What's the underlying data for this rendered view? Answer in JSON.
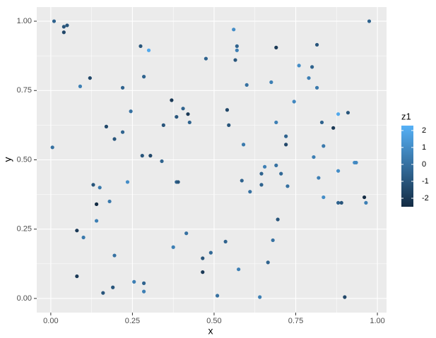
{
  "chart_data": {
    "type": "scatter",
    "xlabel": "x",
    "ylabel": "y",
    "x": [
      0.01,
      0.04,
      0.05,
      0.04,
      0.005,
      0.09,
      0.12,
      0.13,
      0.15,
      0.14,
      0.18,
      0.14,
      0.08,
      0.1,
      0.08,
      0.16,
      0.19,
      0.195,
      0.17,
      0.195,
      0.22,
      0.22,
      0.245,
      0.235,
      0.255,
      0.285,
      0.285,
      0.275,
      0.3,
      0.285,
      0.28,
      0.305,
      0.34,
      0.345,
      0.37,
      0.385,
      0.405,
      0.42,
      0.425,
      0.385,
      0.39,
      0.375,
      0.415,
      0.475,
      0.465,
      0.465,
      0.49,
      0.51,
      0.535,
      0.54,
      0.545,
      0.56,
      0.57,
      0.57,
      0.565,
      0.6,
      0.59,
      0.585,
      0.61,
      0.575,
      0.645,
      0.655,
      0.645,
      0.665,
      0.68,
      0.64,
      0.675,
      0.69,
      0.69,
      0.69,
      0.705,
      0.695,
      0.72,
      0.72,
      0.725,
      0.745,
      0.76,
      0.79,
      0.8,
      0.805,
      0.815,
      0.815,
      0.82,
      0.83,
      0.835,
      0.835,
      0.865,
      0.88,
      0.88,
      0.88,
      0.89,
      0.91,
      0.93,
      0.935,
      0.96,
      0.965,
      0.975,
      0.9
    ],
    "y": [
      1.0,
      0.98,
      0.985,
      0.96,
      0.545,
      0.765,
      0.795,
      0.41,
      0.4,
      0.34,
      0.35,
      0.28,
      0.245,
      0.22,
      0.08,
      0.02,
      0.04,
      0.155,
      0.62,
      0.575,
      0.6,
      0.76,
      0.675,
      0.42,
      0.06,
      0.055,
      0.025,
      0.91,
      0.895,
      0.8,
      0.515,
      0.515,
      0.495,
      0.625,
      0.715,
      0.655,
      0.685,
      0.665,
      0.635,
      0.42,
      0.42,
      0.185,
      0.235,
      0.865,
      0.145,
      0.095,
      0.165,
      0.01,
      0.205,
      0.68,
      0.625,
      0.97,
      0.91,
      0.895,
      0.86,
      0.77,
      0.555,
      0.425,
      0.385,
      0.105,
      0.41,
      0.475,
      0.45,
      0.13,
      0.21,
      0.005,
      0.78,
      0.905,
      0.635,
      0.48,
      0.45,
      0.285,
      0.585,
      0.555,
      0.405,
      0.71,
      0.84,
      0.795,
      0.835,
      0.51,
      0.76,
      0.915,
      0.435,
      0.635,
      0.55,
      0.365,
      0.615,
      0.665,
      0.46,
      0.345,
      0.345,
      0.67,
      0.49,
      0.49,
      0.365,
      0.345,
      1.0,
      0.005
    ],
    "z": [
      -0.5,
      -1,
      -1,
      -1.5,
      0,
      0.5,
      -1.5,
      -1,
      0.3,
      -2.5,
      0.3,
      0.5,
      -2,
      0.3,
      -2,
      -1,
      -1,
      0,
      -1.5,
      -1,
      -0.5,
      -0.5,
      0,
      1,
      0.5,
      -0.5,
      0.5,
      -1,
      2,
      -0.5,
      -1,
      -1.5,
      -0.5,
      -1,
      -2,
      -1,
      -0.5,
      -2,
      -0.5,
      -0.5,
      -1,
      0.5,
      0,
      -0.5,
      -1,
      -2,
      -0.3,
      0,
      -0.5,
      -1.5,
      -1,
      1,
      -0.5,
      0.5,
      -1,
      0,
      0.3,
      -0.5,
      0,
      0.5,
      -0.5,
      0.5,
      -0.5,
      -0.5,
      0,
      0.5,
      0.5,
      -2,
      0.5,
      0,
      -0.3,
      -1,
      -0.5,
      -1.5,
      0,
      0.8,
      1,
      0.5,
      -0.5,
      0.5,
      0.3,
      -1,
      0.5,
      -0.5,
      0.3,
      1,
      -2,
      2,
      1,
      -0.5,
      -1,
      -1,
      1,
      0.8,
      -2.5,
      0.5,
      -0.5,
      -1.5
    ],
    "xlim": [
      -0.043,
      1.028
    ],
    "ylim": [
      -0.051,
      1.051
    ],
    "xticks": [
      {
        "value": 0,
        "label": "0.00"
      },
      {
        "value": 0.25,
        "label": "0.25"
      },
      {
        "value": 0.5,
        "label": "0.50"
      },
      {
        "value": 0.75,
        "label": "0.75"
      },
      {
        "value": 1,
        "label": "1.00"
      }
    ],
    "yticks": [
      {
        "value": 0,
        "label": "0.00"
      },
      {
        "value": 0.25,
        "label": "0.25"
      },
      {
        "value": 0.5,
        "label": "0.50"
      },
      {
        "value": 0.75,
        "label": "0.75"
      },
      {
        "value": 1,
        "label": "1.00"
      }
    ],
    "grid": true,
    "colorbar": {
      "title": "z1",
      "lim": [
        -2.5,
        2.29
      ],
      "ticks": [
        2,
        1,
        0,
        -1,
        -2
      ],
      "low_color": "#132B43",
      "high_color": "#56B1F7"
    }
  }
}
